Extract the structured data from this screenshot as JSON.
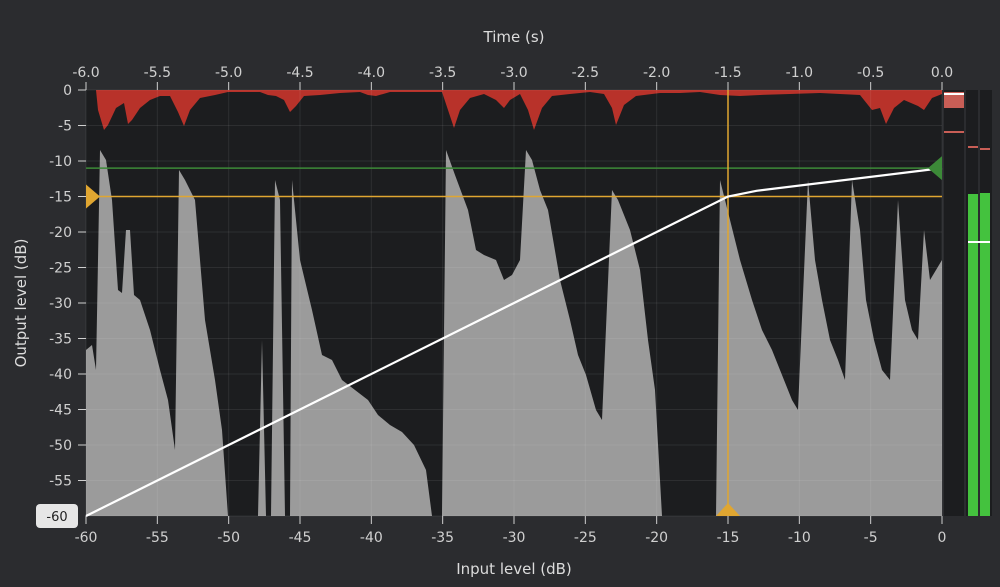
{
  "axes": {
    "top_title": "Time (s)",
    "bottom_title": "Input level (dB)",
    "left_title": "Output level (dB)",
    "time_ticks": [
      "-6.0",
      "-5.5",
      "-5.0",
      "-4.5",
      "-4.0",
      "-3.5",
      "-3.0",
      "-2.5",
      "-2.0",
      "-1.5",
      "-1.0",
      "-0.5",
      "0.0"
    ],
    "input_ticks": [
      "-60",
      "-55",
      "-50",
      "-45",
      "-40",
      "-35",
      "-30",
      "-25",
      "-20",
      "-15",
      "-10",
      "-5",
      "0"
    ],
    "output_ticks": [
      "0",
      "-5",
      "-10",
      "-15",
      "-20",
      "-25",
      "-30",
      "-35",
      "-40",
      "-45",
      "-50",
      "-55"
    ],
    "floor_badge": "-60"
  },
  "controls": {
    "threshold_db": -15,
    "ceiling_db": -11,
    "knee_input_db": -15
  },
  "chart_data": {
    "type": "line",
    "xlabel": "Input level (dB)",
    "ylabel": "Output level (dB)",
    "xlim": [
      -60,
      0
    ],
    "ylim": [
      -60,
      0
    ],
    "top_axis": {
      "label": "Time (s)",
      "range": [
        -6.0,
        0.0
      ]
    },
    "series": [
      {
        "x": [
          -60,
          -15,
          -13,
          0
        ],
        "y": [
          -60,
          -15,
          -14.2,
          -11
        ]
      }
    ]
  },
  "colors": {
    "background": "#2b2c2f",
    "plot_bg": "#1c1d1f",
    "waveform": "#9b9b9b",
    "gain_reduction": "#b8322a",
    "threshold": "#e0a631",
    "ceiling": "#3c8a38",
    "curve": "#ffffff",
    "meter": "#44c23e"
  }
}
